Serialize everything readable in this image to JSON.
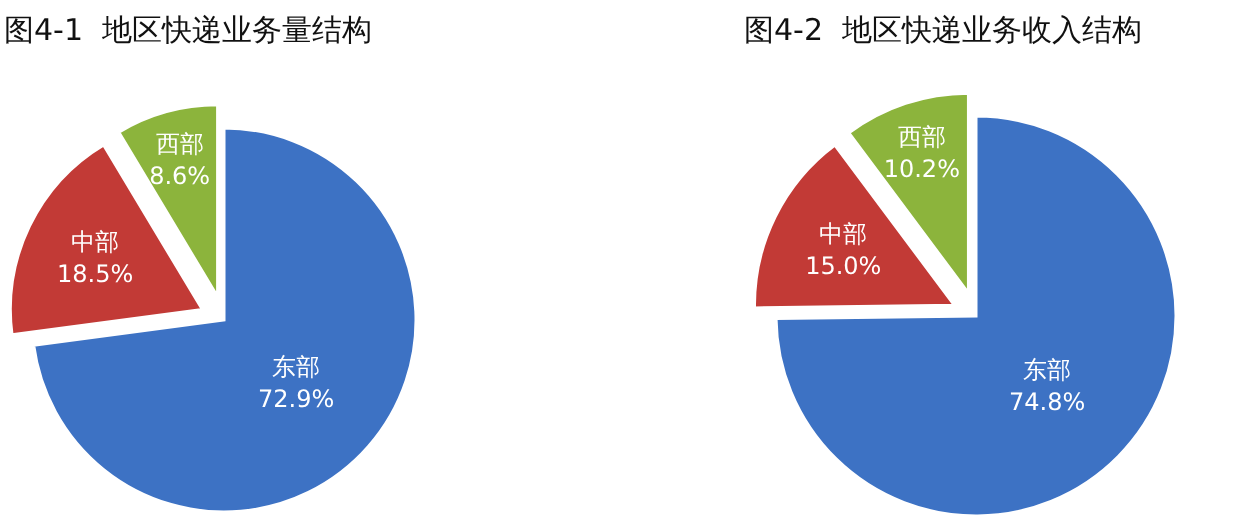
{
  "chart_data": [
    {
      "type": "pie",
      "title": "图4-1  地区快递业务量结构",
      "categories": [
        "东部",
        "中部",
        "西部"
      ],
      "values": [
        72.9,
        18.5,
        8.6
      ],
      "colors": [
        "#3d72c4",
        "#c23a36",
        "#8cb43c"
      ],
      "value_labels": [
        "72.9%",
        "18.5%",
        "8.6%"
      ]
    },
    {
      "type": "pie",
      "title": "图4-2  地区快递业务收入结构",
      "categories": [
        "东部",
        "中部",
        "西部"
      ],
      "values": [
        74.8,
        15.0,
        10.2
      ],
      "colors": [
        "#3d72c4",
        "#c23a36",
        "#8cb43c"
      ],
      "value_labels": [
        "74.8%",
        "15.0%",
        "10.2%"
      ]
    }
  ]
}
